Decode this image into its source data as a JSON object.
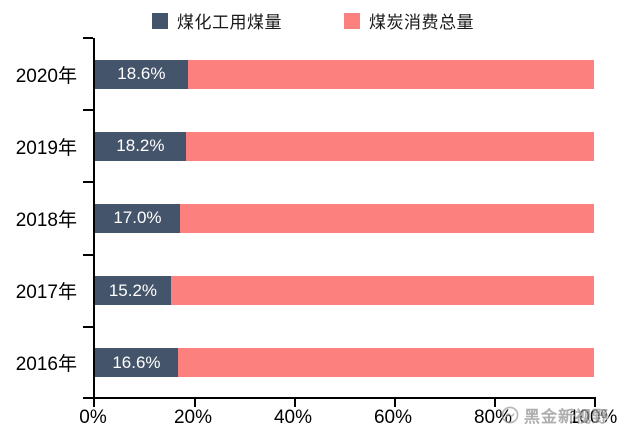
{
  "legend": {
    "items": [
      {
        "label": "煤化工用煤量",
        "color": "#44546A"
      },
      {
        "label": "煤炭消费总量",
        "color": "#FC817E"
      }
    ]
  },
  "chart_data": {
    "type": "bar",
    "orientation": "horizontal",
    "stacked": true,
    "title": "",
    "categories": [
      "2020年",
      "2019年",
      "2018年",
      "2017年",
      "2016年"
    ],
    "series": [
      {
        "name": "煤化工用煤量",
        "color": "#44546A",
        "values": [
          18.6,
          18.2,
          17.0,
          15.2,
          16.6
        ]
      },
      {
        "name": "煤炭消费总量",
        "color": "#FC817E",
        "values": [
          81.4,
          81.8,
          83.0,
          84.8,
          83.4
        ]
      }
    ],
    "bar_labels": [
      "18.6%",
      "18.2%",
      "17.0%",
      "15.2%",
      "16.6%"
    ],
    "x_tick_labels": [
      "0%",
      "20%",
      "40%",
      "60%",
      "80%",
      "100%"
    ],
    "xlim": [
      0,
      100
    ],
    "grid": false,
    "legend_position": "top"
  },
  "watermark": {
    "text": "黑金新视野"
  }
}
